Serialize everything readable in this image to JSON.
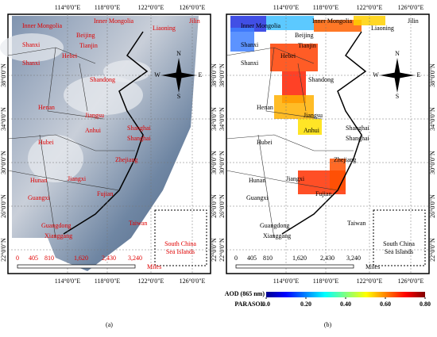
{
  "panels": [
    {
      "label": "(a)"
    },
    {
      "label": "(b)"
    }
  ],
  "longitude_labels": [
    "114°0'0\"E",
    "118°0'0\"E",
    "122°0'0\"E",
    "126°0'0\"E"
  ],
  "latitude_labels": [
    "38°0'0\"N",
    "34°0'0\"N",
    "30°0'0\"N",
    "26°0'0\"N",
    "22°0'0\"N"
  ],
  "regions": [
    "Inner Mongolia",
    "Inner Mongolia",
    "Beijing",
    "Tianjin",
    "Liaoning",
    "Jilin",
    "Shanxi",
    "Shanxi",
    "Hebei",
    "Shandong",
    "Henan",
    "Jiangsu",
    "Anhui",
    "Shanghai",
    "Shanghai",
    "Hubei",
    "Zhejiang",
    "Hunan",
    "Jiangxi",
    "Fujian",
    "Guangxi",
    "Guangdong",
    "Xianggang",
    "Taiwan"
  ],
  "scale_bar": {
    "labels": [
      "0",
      "405",
      "810",
      "1,620",
      "2,430",
      "3,240"
    ],
    "unit": "Miles"
  },
  "inset_label": [
    "South China",
    "Sea Islands"
  ],
  "compass": {
    "north": "N",
    "south": "S",
    "east": "E",
    "west": "W"
  },
  "colorbar": {
    "title": "AOD (865 nm)",
    "source": "PARASOL",
    "range": [
      0,
      0.8
    ],
    "ticks": [
      {
        "value": 0,
        "label": "0.0"
      },
      {
        "value": 0.2,
        "label": "0.20"
      },
      {
        "value": 0.4,
        "label": "0.40"
      },
      {
        "value": 0.6,
        "label": "0.60"
      },
      {
        "value": 0.8,
        "label": "0.80"
      }
    ]
  }
}
